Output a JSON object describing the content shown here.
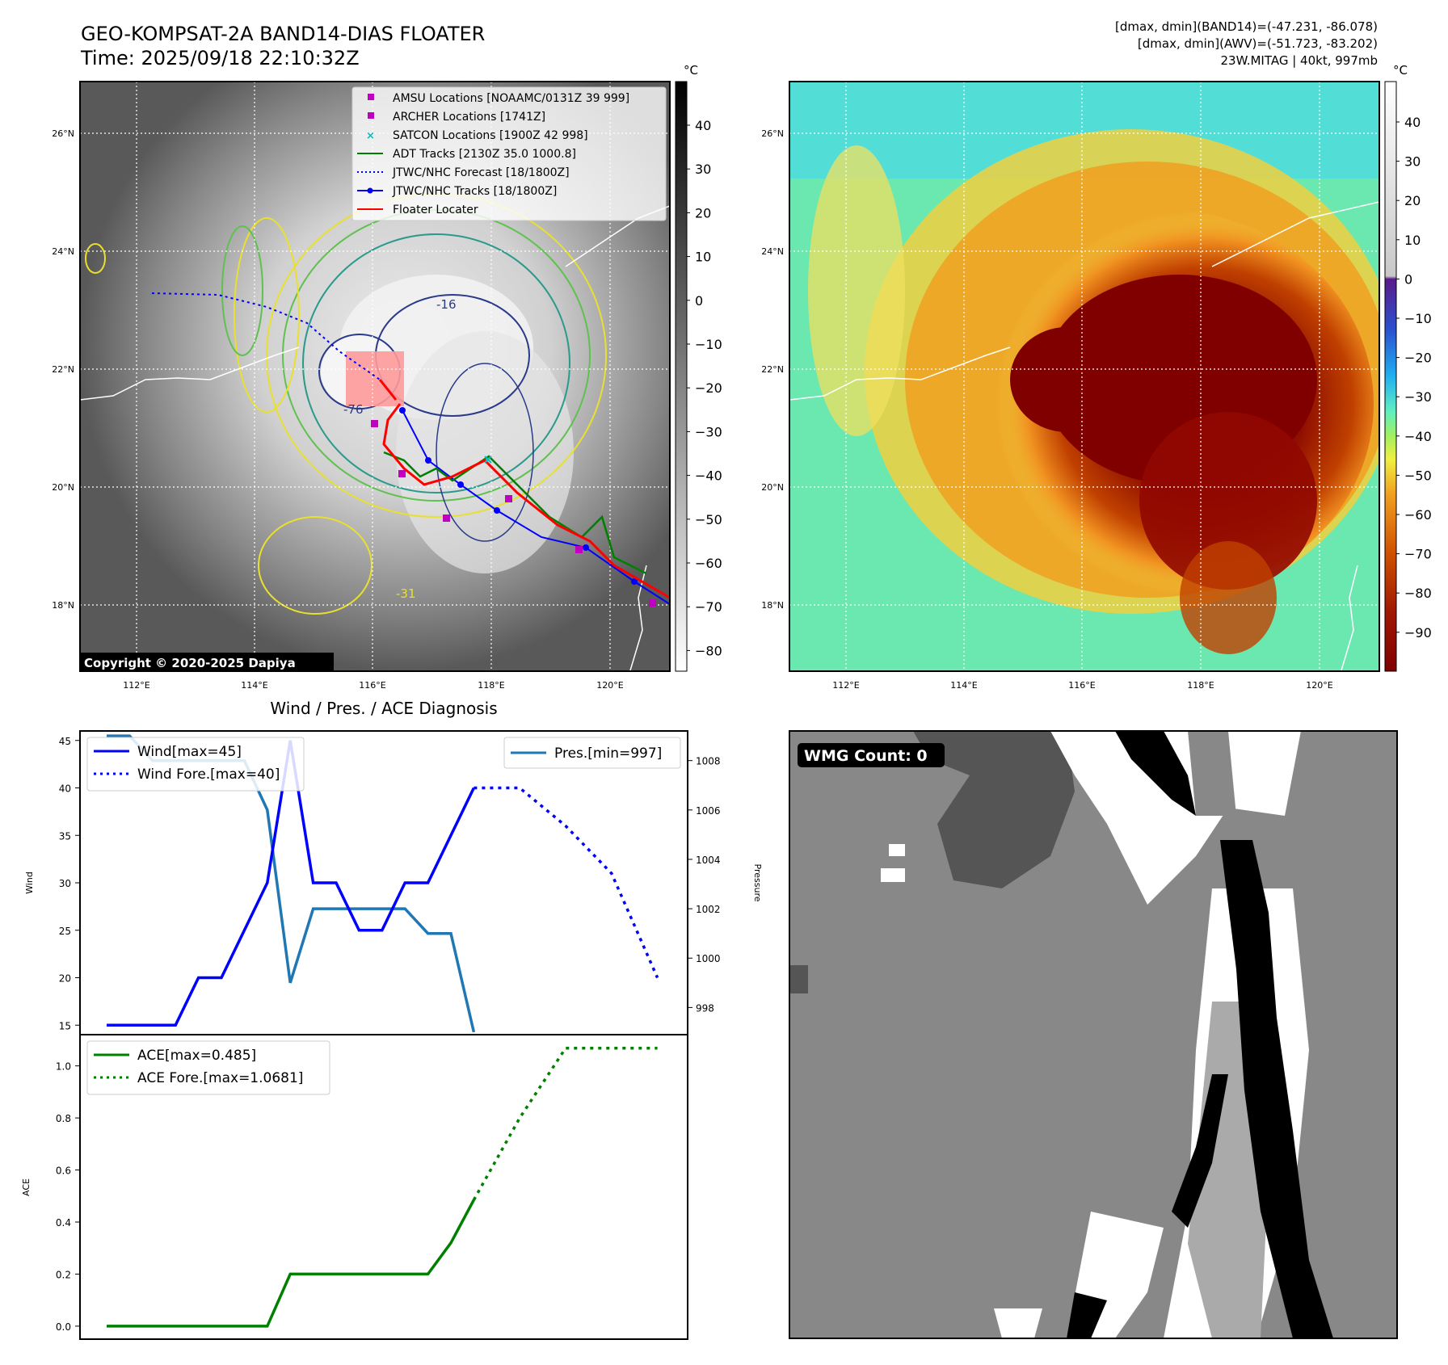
{
  "header": {
    "title_line1": "GEO-KOMPSAT-2A BAND14-DIAS FLOATER",
    "title_line2": "Time: 2025/09/18 22:10:32Z",
    "info_line1": "[dmax, dmin](BAND14)=(-47.231, -86.078)",
    "info_line2": "[dmax, dmin](AWV)=(-51.723, -83.202)",
    "info_line3": "23W.MITAG | 40kt, 997mb"
  },
  "maps": {
    "lon_ticks": [
      "112°E",
      "114°E",
      "116°E",
      "118°E",
      "120°E"
    ],
    "lat_ticks": [
      "26°N",
      "24°N",
      "22°N",
      "20°N",
      "18°N"
    ],
    "copyright": "Copyright © 2020-2025 Dapiya",
    "contour_labels": [
      "-76",
      "-31",
      "-16"
    ],
    "legend": [
      {
        "label": "AMSU Locations [NOAAMC/0131Z 39 999]",
        "color": "#c000c0",
        "marker": "square"
      },
      {
        "label": "ARCHER Locations [1741Z]",
        "color": "#c000c0",
        "marker": "square"
      },
      {
        "label": "SATCON Locations [1900Z 42 998]",
        "color": "#00bfbf",
        "marker": "x"
      },
      {
        "label": "ADT Tracks [2130Z 35.0 1000.8]",
        "color": "#008000",
        "marker": "line"
      },
      {
        "label": "JTWC/NHC Forecast [18/1800Z]",
        "color": "#0000ff",
        "marker": "dotted"
      },
      {
        "label": "JTWC/NHC Tracks [18/1800Z]",
        "color": "#0000ff",
        "marker": "line-dot"
      },
      {
        "label": "Floater Locater",
        "color": "#ff0000",
        "marker": "line"
      }
    ],
    "gray_colorbar": {
      "unit": "°C",
      "ticks": [
        "40",
        "30",
        "20",
        "10",
        "0",
        "−10",
        "−20",
        "−30",
        "−40",
        "−50",
        "−60",
        "−70",
        "−80"
      ]
    },
    "color_colorbar": {
      "unit": "°C",
      "ticks": [
        "40",
        "30",
        "20",
        "10",
        "0",
        "−10",
        "−20",
        "−30",
        "−40",
        "−50",
        "−60",
        "−70",
        "−80",
        "−90"
      ]
    }
  },
  "diag_title": "Wind / Pres. / ACE Diagnosis",
  "wmg_label": "WMG Count: 0",
  "chart_data": [
    {
      "type": "line",
      "title": "Wind / Pres. / ACE Diagnosis",
      "ylabel": "Wind",
      "y2label": "Pressure",
      "ylim": [
        14,
        46
      ],
      "y2lim": [
        996.9,
        1009.2
      ],
      "yticks": [
        "15",
        "20",
        "25",
        "30",
        "35",
        "40",
        "45"
      ],
      "y2ticks": [
        "998",
        "1000",
        "1002",
        "1004",
        "1006",
        "1008"
      ],
      "series": [
        {
          "name": "Wind[max=45]",
          "color": "#0000ff",
          "style": "solid",
          "x": [
            0,
            1,
            2,
            3,
            4,
            5,
            6,
            7,
            8,
            9,
            10,
            11,
            12,
            13,
            14,
            15,
            16
          ],
          "values": [
            15,
            15,
            15,
            15,
            20,
            20,
            25,
            30,
            45,
            30,
            30,
            25,
            25,
            30,
            30,
            35,
            40
          ]
        },
        {
          "name": "Wind Fore.[max=40]",
          "color": "#0000ff",
          "style": "dotted",
          "x": [
            16,
            18,
            20,
            22,
            24
          ],
          "values": [
            40,
            40,
            36,
            31,
            20
          ]
        },
        {
          "name": "Pres.[min=997]",
          "color": "#1f77b4",
          "style": "solid",
          "axis": "right",
          "x": [
            0,
            1,
            2,
            3,
            4,
            5,
            6,
            7,
            8,
            9,
            10,
            11,
            12,
            13,
            14,
            15,
            16
          ],
          "values": [
            1009,
            1009,
            1008,
            1008,
            1008,
            1008,
            1008,
            1006,
            999,
            1002,
            1002,
            1002,
            1002,
            1002,
            1001,
            1001,
            997
          ]
        }
      ]
    },
    {
      "type": "line",
      "ylabel": "ACE",
      "ylim": [
        -0.05,
        1.12
      ],
      "yticks": [
        "0.0",
        "0.2",
        "0.4",
        "0.6",
        "0.8",
        "1.0"
      ],
      "series": [
        {
          "name": "ACE[max=0.485]",
          "color": "#008000",
          "style": "solid",
          "x": [
            0,
            1,
            2,
            3,
            4,
            5,
            6,
            7,
            8,
            9,
            10,
            11,
            12,
            13,
            14,
            15,
            16
          ],
          "values": [
            0,
            0,
            0,
            0,
            0,
            0,
            0,
            0,
            0.2,
            0.2,
            0.2,
            0.2,
            0.2,
            0.2,
            0.2,
            0.32,
            0.485
          ]
        },
        {
          "name": "ACE Fore.[max=1.0681]",
          "color": "#008000",
          "style": "dotted",
          "x": [
            16,
            18,
            20,
            22,
            24
          ],
          "values": [
            0.485,
            0.8,
            1.0681,
            1.0681,
            1.0681
          ]
        }
      ]
    }
  ]
}
